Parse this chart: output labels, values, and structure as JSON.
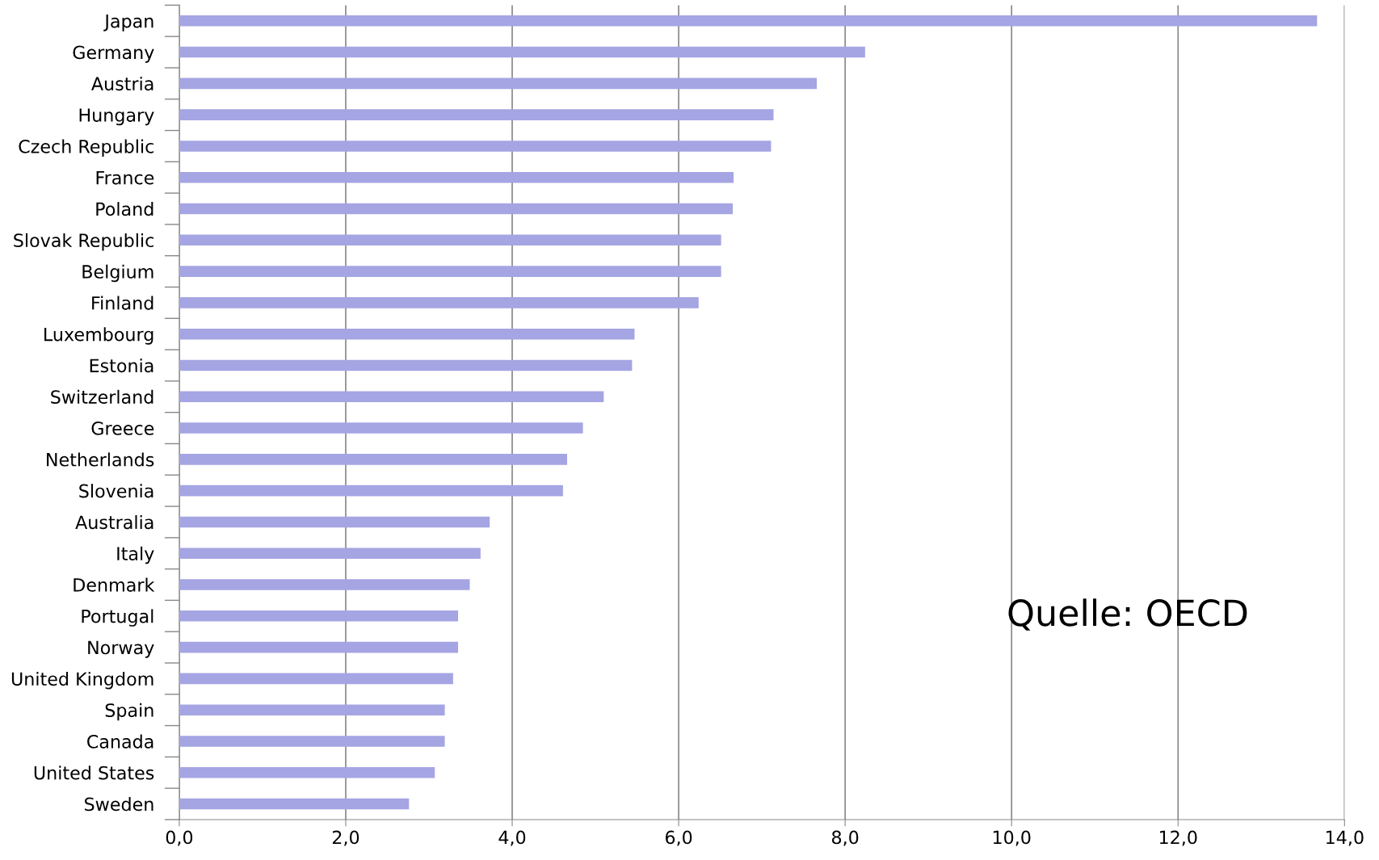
{
  "chart_data": {
    "type": "bar",
    "orientation": "horizontal",
    "categories": [
      "Japan",
      "Germany",
      "Austria",
      "Hungary",
      "Czech Republic",
      "France",
      "Poland",
      "Slovak Republic",
      "Belgium",
      "Finland",
      "Luxembourg",
      "Estonia",
      "Switzerland",
      "Greece",
      "Netherlands",
      "Slovenia",
      "Australia",
      "Italy",
      "Denmark",
      "Portugal",
      "Norway",
      "United Kingdom",
      "Spain",
      "Canada",
      "United States",
      "Sweden"
    ],
    "values": [
      13.67,
      8.24,
      7.66,
      7.14,
      7.11,
      6.66,
      6.65,
      6.51,
      6.51,
      6.24,
      5.47,
      5.44,
      5.1,
      4.85,
      4.66,
      4.61,
      3.73,
      3.62,
      3.49,
      3.35,
      3.35,
      3.29,
      3.19,
      3.19,
      3.07,
      2.76
    ],
    "color": "#a5a5e3",
    "xlim": [
      0,
      14
    ],
    "xticks": [
      {
        "value": 0,
        "label": "0,0"
      },
      {
        "value": 2,
        "label": "2,0"
      },
      {
        "value": 4,
        "label": "4,0"
      },
      {
        "value": 6,
        "label": "6,0"
      },
      {
        "value": 8,
        "label": "8,0"
      },
      {
        "value": 10,
        "label": "10,0"
      },
      {
        "value": 12,
        "label": "12,0"
      },
      {
        "value": 14,
        "label": "14,0"
      }
    ],
    "grid": "x",
    "annotations": [
      "Quelle: OECD"
    ]
  }
}
